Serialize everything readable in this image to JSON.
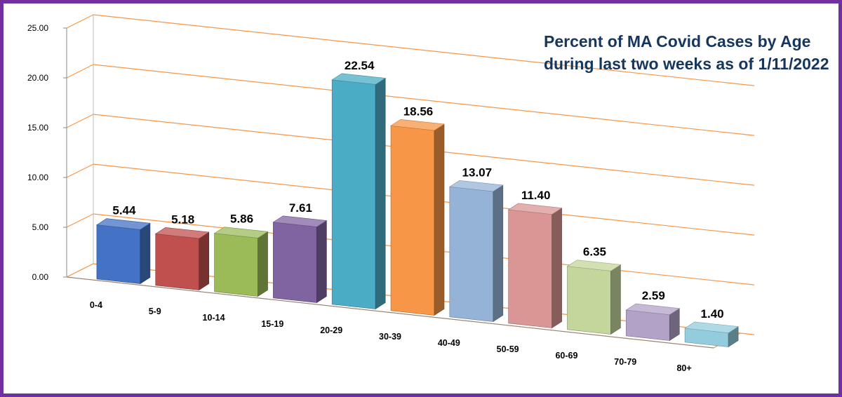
{
  "chart_data": {
    "type": "bar",
    "title_line1": "Percent of MA Covid Cases by Age",
    "title_line2": "during last two weeks as of 1/11/2022",
    "categories": [
      "0-4",
      "5-9",
      "10-14",
      "15-19",
      "20-29",
      "30-39",
      "40-49",
      "50-59",
      "60-69",
      "70-79",
      "80+"
    ],
    "values": [
      5.44,
      5.18,
      5.86,
      7.61,
      22.54,
      18.56,
      13.07,
      11.4,
      6.35,
      2.59,
      1.4
    ],
    "value_labels": [
      "5.44",
      "5.18",
      "5.86",
      "7.61",
      "22.54",
      "18.56",
      "13.07",
      "11.40",
      "6.35",
      "2.59",
      "1.40"
    ],
    "yticks": [
      "0.00",
      "5.00",
      "10.00",
      "15.00",
      "20.00",
      "25.00"
    ],
    "ylim": [
      0,
      25
    ],
    "grid": true,
    "style": "3d-column",
    "colors": [
      "#4472c4",
      "#c0504d",
      "#9bbb59",
      "#8064a2",
      "#4bacc6",
      "#f79646",
      "#95b3d7",
      "#d99694",
      "#c3d69b",
      "#b2a2c7",
      "#93cddd"
    ],
    "gridline_color": "#f79646",
    "border_color": "#7030a0"
  }
}
